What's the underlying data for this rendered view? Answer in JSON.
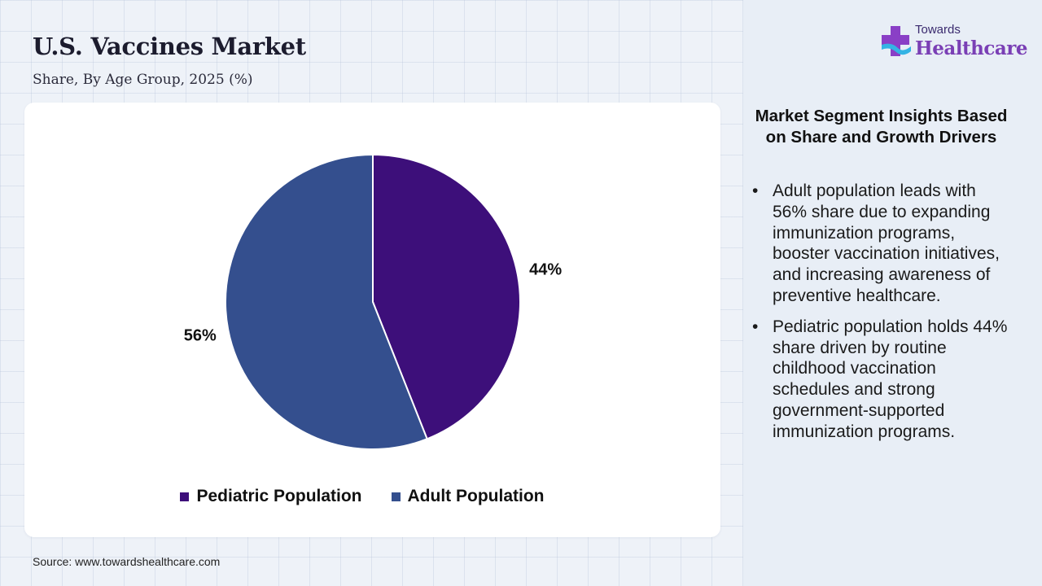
{
  "header": {
    "title": "U.S. Vaccines Market",
    "subtitle": "Share, By Age Group, 2025 (%)"
  },
  "chart_data": {
    "type": "pie",
    "title": "U.S. Vaccines Market",
    "subtitle": "Share, By Age Group, 2025 (%)",
    "categories": [
      "Pediatric Population",
      "Adult Population"
    ],
    "values": [
      44,
      56
    ],
    "value_labels": [
      "44%",
      "56%"
    ],
    "colors": [
      "#3d0f7a",
      "#344f8e"
    ],
    "start_angle_deg": 0,
    "direction": "clockwise",
    "legend_position": "bottom"
  },
  "source": "Source: www.towardshealthcare.com",
  "logo": {
    "line1": "Towards",
    "line2": "Healthcare"
  },
  "insights": {
    "heading": "Market Segment Insights Based on Share and Growth Drivers",
    "bullet_symbol": "•",
    "items": [
      "Adult population leads with 56% share due to expanding immunization programs, booster vaccination initiatives, and increasing awareness of preventive healthcare.",
      "Pediatric population holds 44% share driven by routine childhood vaccination schedules and strong government-supported immunization programs."
    ]
  }
}
